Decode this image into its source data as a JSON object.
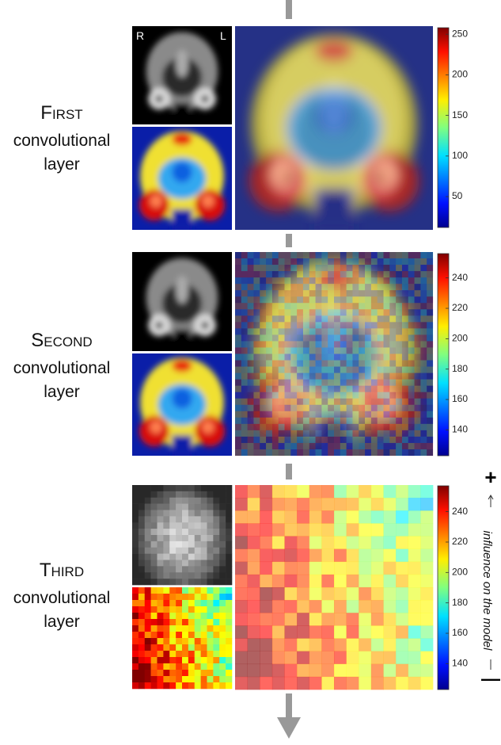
{
  "orientation_labels": {
    "right": "R",
    "left": "L"
  },
  "panels": [
    {
      "title": "First",
      "subtitle_line1": "convolutional",
      "subtitle_line2": "layer",
      "colorbar": {
        "lim": [
          12,
          258
        ],
        "ticks": [
          50,
          100,
          150,
          200,
          250
        ]
      }
    },
    {
      "title": "Second",
      "subtitle_line1": "convolutional",
      "subtitle_line2": "layer",
      "colorbar": {
        "lim": [
          123,
          256
        ],
        "ticks": [
          140,
          160,
          180,
          200,
          220,
          240
        ]
      }
    },
    {
      "title": "Third",
      "subtitle_line1": "convolutional",
      "subtitle_line2": "layer",
      "colorbar": {
        "lim": [
          123,
          257
        ],
        "ticks": [
          140,
          160,
          180,
          200,
          220,
          240
        ]
      }
    }
  ],
  "influence": {
    "plus": "+",
    "label": "influence on the model",
    "minus": "—"
  }
}
